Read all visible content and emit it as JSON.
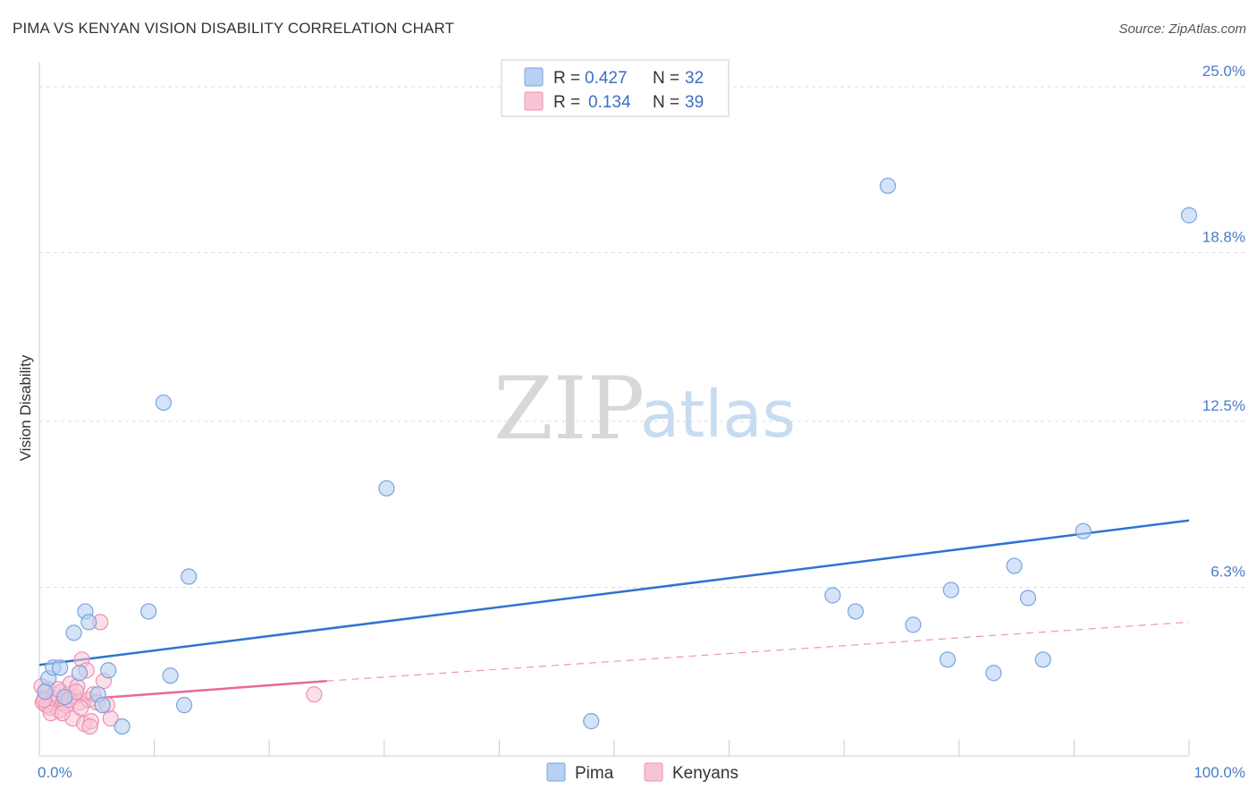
{
  "title": "PIMA VS KENYAN VISION DISABILITY CORRELATION CHART",
  "source": "Source: ZipAtlas.com",
  "watermark": {
    "zip": "ZIP",
    "atlas": "atlas"
  },
  "legend": {
    "rows": [
      {
        "r_label": "R =",
        "r_value": "0.427",
        "n_label": "N =",
        "n_value": "32"
      },
      {
        "r_label": "R =",
        "r_value": "0.134",
        "n_label": "N =",
        "n_value": "39"
      }
    ]
  },
  "colors": {
    "pima_fill": "#b8d0f2",
    "pima_stroke": "#7aa3de",
    "pima_line": "#2f73d0",
    "kenyans_fill": "#f7c4d6",
    "kenyans_stroke": "#ee8fb2",
    "kenyans_line": "#e8689a",
    "tick_text": "#4a7cc7",
    "grid": "#dddddd"
  },
  "chart_data": {
    "type": "scatter",
    "ylabel": "Vision Disability",
    "xlabel": "",
    "xlim": [
      0,
      100
    ],
    "ylim": [
      0,
      26
    ],
    "x_tick_labels": [
      {
        "value": 0,
        "label": "0.0%"
      },
      {
        "value": 100,
        "label": "100.0%"
      }
    ],
    "x_minor_ticks": [
      10,
      20,
      30,
      40,
      50,
      60,
      70,
      80,
      90,
      100
    ],
    "y_ticks": [
      {
        "value": 6.3,
        "label": "6.3%"
      },
      {
        "value": 12.5,
        "label": "12.5%"
      },
      {
        "value": 18.8,
        "label": "18.8%"
      },
      {
        "value": 25.0,
        "label": "25.0%"
      }
    ],
    "grid": true,
    "legend_position": "top-center",
    "series": [
      {
        "name": "Pima",
        "points": [
          [
            0.8,
            2.9
          ],
          [
            1.2,
            3.3
          ],
          [
            1.8,
            3.3
          ],
          [
            3.0,
            4.6
          ],
          [
            3.5,
            3.1
          ],
          [
            4.0,
            5.4
          ],
          [
            4.3,
            5.0
          ],
          [
            5.1,
            2.3
          ],
          [
            5.5,
            1.9
          ],
          [
            6.0,
            3.2
          ],
          [
            7.2,
            1.1
          ],
          [
            9.5,
            5.4
          ],
          [
            10.8,
            13.2
          ],
          [
            11.4,
            3.0
          ],
          [
            12.6,
            1.9
          ],
          [
            13.0,
            6.7
          ],
          [
            30.2,
            10.0
          ],
          [
            48.0,
            1.3
          ],
          [
            69.0,
            6.0
          ],
          [
            71.0,
            5.4
          ],
          [
            73.8,
            21.3
          ],
          [
            76.0,
            4.9
          ],
          [
            79.0,
            3.6
          ],
          [
            79.3,
            6.2
          ],
          [
            83.0,
            3.1
          ],
          [
            84.8,
            7.1
          ],
          [
            86.0,
            5.9
          ],
          [
            87.3,
            3.6
          ],
          [
            90.8,
            8.4
          ],
          [
            100.0,
            20.2
          ],
          [
            0.5,
            2.4
          ],
          [
            2.2,
            2.2
          ]
        ],
        "trend": {
          "x": [
            0,
            100
          ],
          "y": [
            3.4,
            8.8
          ]
        }
      },
      {
        "name": "Kenyans",
        "points": [
          [
            0.3,
            2.0
          ],
          [
            0.5,
            2.2
          ],
          [
            0.7,
            2.5
          ],
          [
            0.9,
            1.8
          ],
          [
            1.1,
            2.0
          ],
          [
            1.3,
            2.3
          ],
          [
            1.5,
            2.1
          ],
          [
            1.7,
            1.7
          ],
          [
            1.9,
            2.4
          ],
          [
            2.1,
            2.0
          ],
          [
            2.3,
            1.9
          ],
          [
            2.5,
            2.3
          ],
          [
            2.7,
            2.7
          ],
          [
            2.9,
            1.4
          ],
          [
            3.1,
            2.2
          ],
          [
            3.3,
            2.6
          ],
          [
            3.5,
            2.0
          ],
          [
            3.7,
            3.6
          ],
          [
            3.9,
            1.2
          ],
          [
            4.1,
            3.2
          ],
          [
            4.3,
            2.1
          ],
          [
            4.5,
            1.3
          ],
          [
            4.7,
            2.3
          ],
          [
            5.0,
            2.0
          ],
          [
            5.3,
            5.0
          ],
          [
            5.6,
            2.8
          ],
          [
            5.9,
            1.9
          ],
          [
            6.2,
            1.4
          ],
          [
            0.2,
            2.6
          ],
          [
            0.6,
            1.9
          ],
          [
            1.0,
            1.6
          ],
          [
            1.6,
            2.5
          ],
          [
            2.0,
            1.6
          ],
          [
            2.6,
            2.1
          ],
          [
            3.2,
            2.4
          ],
          [
            3.6,
            1.8
          ],
          [
            4.4,
            1.1
          ],
          [
            23.9,
            2.3
          ],
          [
            0.4,
            2.1
          ]
        ],
        "trend_solid": {
          "x": [
            0,
            25
          ],
          "y": [
            2.0,
            2.8
          ]
        },
        "trend_dashed": {
          "x": [
            25,
            100
          ],
          "y": [
            2.8,
            5.0
          ]
        }
      }
    ]
  },
  "bottom_legend": [
    {
      "label": "Pima"
    },
    {
      "label": "Kenyans"
    }
  ]
}
